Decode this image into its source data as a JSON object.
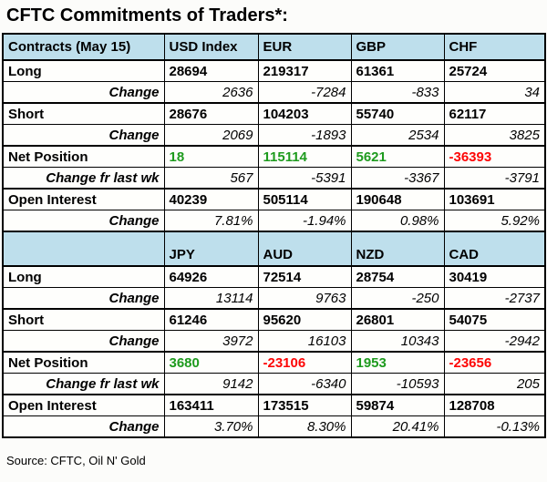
{
  "title": "CFTC Commitments of Traders*:",
  "footer": {
    "source_note": "Source: CFTC, Oil N' Gold"
  },
  "colors": {
    "positive": "#1e9b1e",
    "negative": "#fd0505",
    "header_bg": "#bedfec",
    "label_bg": "#d3dcea",
    "border": "#000000",
    "page_bg": "#fcfcfa"
  },
  "chart_data": {
    "type": "table",
    "title": "CFTC Commitments of Traders*:",
    "source": "Source: CFTC, Oil N' Gold",
    "sections": [
      {
        "header_label": "Contracts (May 15)",
        "columns": [
          "USD Index",
          "EUR",
          "GBP",
          "CHF"
        ],
        "rows": [
          {
            "label": "Long",
            "style": "value",
            "values": [
              "28694",
              "219317",
              "61361",
              "25724"
            ]
          },
          {
            "label": "Change",
            "style": "change",
            "values": [
              "2636",
              "-7284",
              "-833",
              "34"
            ]
          },
          {
            "label": "Short",
            "style": "value",
            "values": [
              "28676",
              "104203",
              "55740",
              "62117"
            ]
          },
          {
            "label": "Change",
            "style": "change",
            "values": [
              "2069",
              "-1893",
              "2534",
              "3825"
            ]
          },
          {
            "label": "Net Position",
            "style": "value",
            "values": [
              "18",
              "115114",
              "5621",
              "-36393"
            ],
            "value_colors": [
              "positive",
              "positive",
              "positive",
              "negative"
            ]
          },
          {
            "label": "Change fr last wk",
            "style": "change",
            "values": [
              "567",
              "-5391",
              "-3367",
              "-3791"
            ]
          },
          {
            "label": "Open Interest",
            "style": "value",
            "values": [
              "40239",
              "505114",
              "190648",
              "103691"
            ]
          },
          {
            "label": "Change",
            "style": "change",
            "values": [
              "7.81%",
              "-1.94%",
              "0.98%",
              "5.92%"
            ]
          }
        ]
      },
      {
        "header_label": "",
        "columns": [
          "JPY",
          "AUD",
          "NZD",
          "CAD"
        ],
        "rows": [
          {
            "label": "Long",
            "style": "value",
            "values": [
              "64926",
              "72514",
              "28754",
              "30419"
            ]
          },
          {
            "label": "Change",
            "style": "change",
            "values": [
              "13114",
              "9763",
              "-250",
              "-2737"
            ]
          },
          {
            "label": "Short",
            "style": "value",
            "values": [
              "61246",
              "95620",
              "26801",
              "54075"
            ]
          },
          {
            "label": "Change",
            "style": "change",
            "values": [
              "3972",
              "16103",
              "10343",
              "-2942"
            ]
          },
          {
            "label": "Net Position",
            "style": "value",
            "values": [
              "3680",
              "-23106",
              "1953",
              "-23656"
            ],
            "value_colors": [
              "positive",
              "negative",
              "positive",
              "negative"
            ]
          },
          {
            "label": "Change fr last wk",
            "style": "change",
            "values": [
              "9142",
              "-6340",
              "-10593",
              "205"
            ]
          },
          {
            "label": "Open Interest",
            "style": "value",
            "values": [
              "163411",
              "173515",
              "59874",
              "128708"
            ]
          },
          {
            "label": "Change",
            "style": "change",
            "values": [
              "3.70%",
              "8.30%",
              "20.41%",
              "-0.13%"
            ]
          }
        ]
      }
    ]
  }
}
